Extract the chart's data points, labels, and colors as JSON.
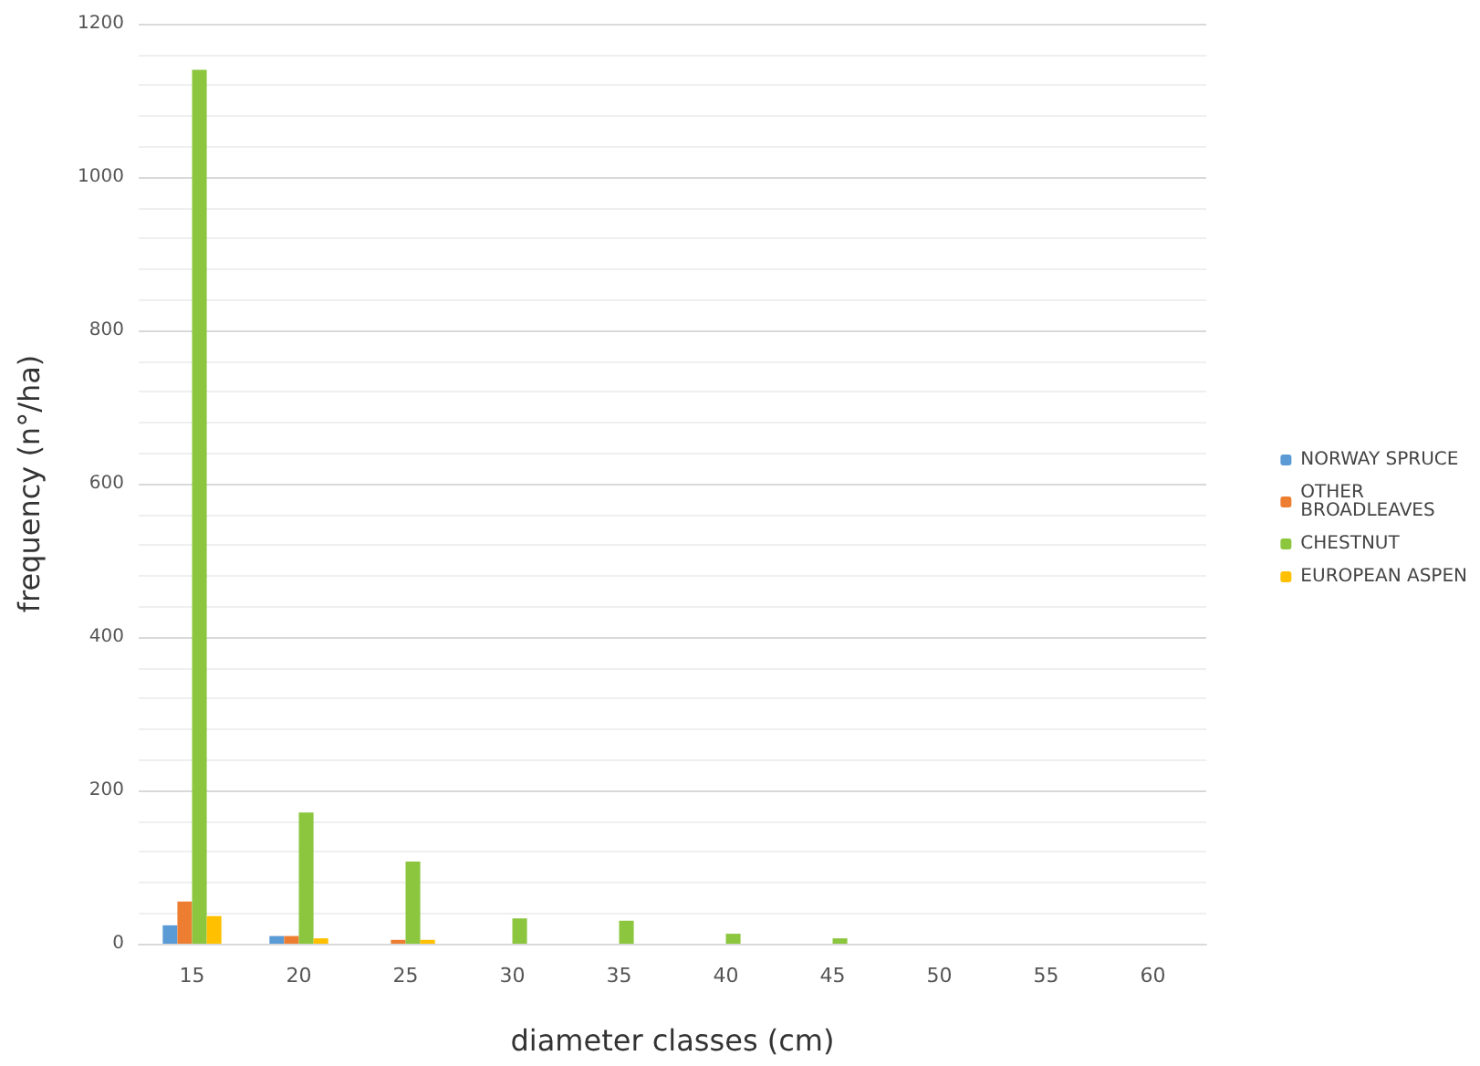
{
  "chart_data": {
    "type": "bar",
    "xlabel": "diameter classes (cm)",
    "ylabel": "frequency (n°/ha)",
    "categories": [
      "15",
      "20",
      "25",
      "30",
      "35",
      "40",
      "45",
      "50",
      "55",
      "60"
    ],
    "series": [
      {
        "name": "NORWAY SPRUCE",
        "color": "#5b9bd5",
        "values": [
          24,
          10,
          0,
          0,
          0,
          0,
          0,
          0,
          0,
          0
        ]
      },
      {
        "name": "OTHER BROADLEAVES",
        "color": "#ed7d31",
        "values": [
          55,
          10,
          5,
          0,
          0,
          0,
          0,
          0,
          0,
          0
        ]
      },
      {
        "name": "CHESTNUT",
        "color": "#8cc63f",
        "values": [
          1140,
          171,
          107,
          33,
          30,
          13,
          7,
          0,
          0,
          0
        ]
      },
      {
        "name": "EUROPEAN ASPEN",
        "color": "#ffc000",
        "values": [
          36,
          7,
          5,
          0,
          0,
          0,
          0,
          0,
          0,
          0
        ]
      }
    ],
    "ylim": [
      0,
      1200
    ],
    "yticks": [
      0,
      200,
      400,
      600,
      800,
      1000,
      1200
    ],
    "grid": "y",
    "legend": "right"
  }
}
